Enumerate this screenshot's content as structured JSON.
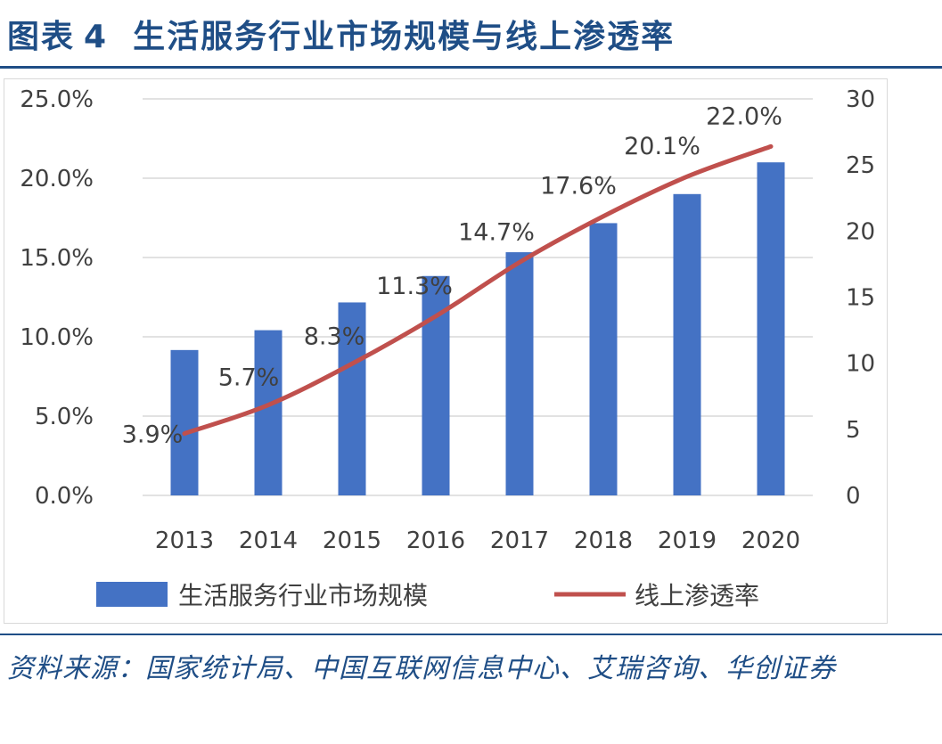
{
  "figure": {
    "label": "图表",
    "number": "4",
    "title": "生活服务行业市场规模与线上渗透率"
  },
  "source": "资料来源：国家统计局、中国互联网信息中心、艾瑞咨询、华创证券",
  "colors": {
    "bar": "#4472c4",
    "line": "#c0504d",
    "heading": "#1f4e86",
    "grid": "#d9d9d9",
    "axis_text": "#404040"
  },
  "chart_data": {
    "type": "bar+line",
    "categories": [
      "2013",
      "2014",
      "2015",
      "2016",
      "2017",
      "2018",
      "2019",
      "2020"
    ],
    "series": [
      {
        "name": "生活服务行业市场规模",
        "type": "bar",
        "axis": "right",
        "values": [
          11,
          12.5,
          14.6,
          16.6,
          18.4,
          20.6,
          22.8,
          25.2
        ]
      },
      {
        "name": "线上渗透率",
        "type": "line",
        "axis": "left",
        "values": [
          3.9,
          5.7,
          8.3,
          11.3,
          14.7,
          17.6,
          20.1,
          22.0
        ],
        "labels": [
          "3.9%",
          "5.7%",
          "8.3%",
          "11.3%",
          "14.7%",
          "17.6%",
          "20.1%",
          "22.0%"
        ]
      }
    ],
    "left_axis": {
      "range": [
        0,
        25
      ],
      "ticks": [
        0,
        5,
        10,
        15,
        20,
        25
      ],
      "tick_labels": [
        "0.0%",
        "5.0%",
        "10.0%",
        "15.0%",
        "20.0%",
        "25.0%"
      ]
    },
    "right_axis": {
      "range": [
        0,
        30
      ],
      "ticks": [
        0,
        5,
        10,
        15,
        20,
        25,
        30
      ],
      "tick_labels": [
        "0",
        "5",
        "10",
        "15",
        "20",
        "25",
        "30"
      ]
    },
    "grid": true,
    "legend_position": "bottom"
  }
}
